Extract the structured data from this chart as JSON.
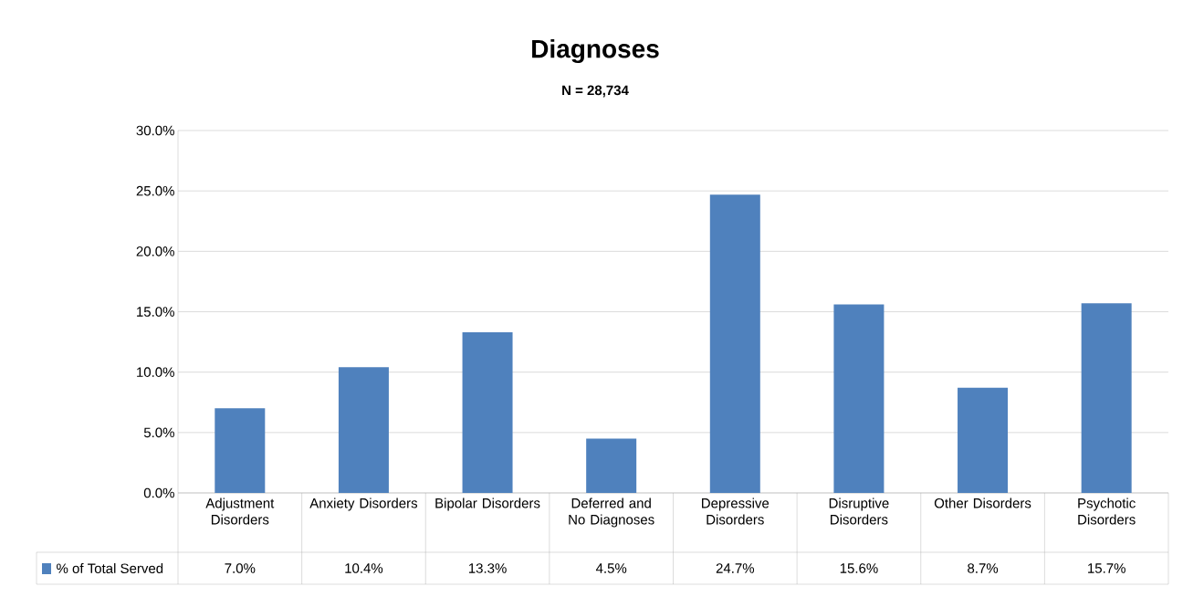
{
  "chart_data": {
    "type": "bar",
    "title": "Diagnoses",
    "subtitle": "N = 28,734",
    "categories": [
      "Adjustment Disorders",
      "Anxiety Disorders",
      "Bipolar Disorders",
      "Deferred and No Diagnoses",
      "Depressive Disorders",
      "Disruptive Disorders",
      "Other Disorders",
      "Psychotic Disorders"
    ],
    "series": [
      {
        "name": "% of Total Served",
        "color": "#4f81bd",
        "values": [
          7.0,
          10.4,
          13.3,
          4.5,
          24.7,
          15.6,
          8.7,
          15.7
        ]
      }
    ],
    "value_labels": [
      "7.0%",
      "10.4%",
      "13.3%",
      "4.5%",
      "24.7%",
      "15.6%",
      "8.7%",
      "15.7%"
    ],
    "ylim": [
      0,
      30
    ],
    "yticks": [
      {
        "value": 0,
        "label": "0.0%"
      },
      {
        "value": 5,
        "label": "5.0%"
      },
      {
        "value": 10,
        "label": "10.0%"
      },
      {
        "value": 15,
        "label": "15.0%"
      },
      {
        "value": 20,
        "label": "20.0%"
      },
      {
        "value": 25,
        "label": "25.0%"
      },
      {
        "value": 30,
        "label": "30.0%"
      }
    ],
    "grid": "y",
    "legend": "bottom left"
  }
}
